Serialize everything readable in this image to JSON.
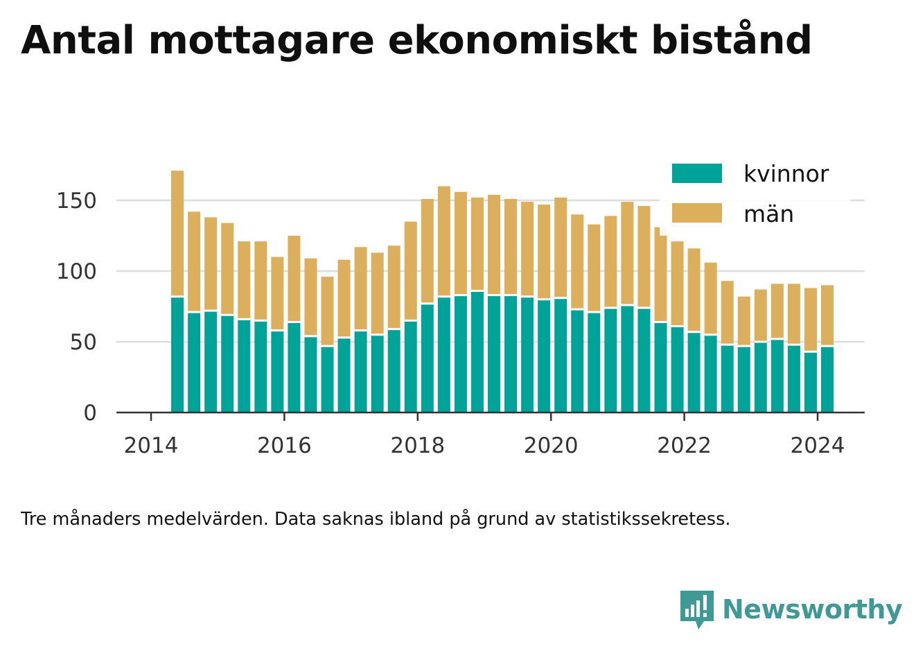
{
  "title": "Antal mottagare ekonomiskt bistånd",
  "note": "Tre månaders medelvärden. Data saknas ibland på grund av statistikssekretess.",
  "brand": "Newsworthy",
  "colors": {
    "kvinnor": "#00a398",
    "man": "#dcaf5d",
    "grid": "#dddddd",
    "axis": "#333333",
    "brand": "#3f9a96"
  },
  "chart_data": {
    "type": "bar",
    "stacked": true,
    "ylim": [
      0,
      175
    ],
    "yticks": [
      0,
      50,
      100,
      150
    ],
    "xticks": [
      "2014",
      "2016",
      "2018",
      "2020",
      "2022",
      "2024"
    ],
    "x_start": "2014-04",
    "x_step_months": 3,
    "legend_position": "top-right",
    "grid": true,
    "series": [
      {
        "name": "kvinnor",
        "values": [
          82,
          71,
          72,
          69,
          66,
          65,
          58,
          64,
          54,
          47,
          53,
          58,
          55,
          59,
          65,
          77,
          82,
          83,
          86,
          83,
          83,
          82,
          80,
          81,
          73,
          71,
          74,
          76,
          74,
          64,
          61,
          57,
          55,
          48,
          47,
          50,
          52,
          48,
          43,
          47
        ]
      },
      {
        "name": "män",
        "values": [
          89,
          71,
          66,
          65,
          55,
          56,
          52,
          61,
          55,
          49,
          55,
          59,
          58,
          59,
          70,
          74,
          78,
          73,
          66,
          71,
          68,
          67,
          67,
          71,
          67,
          62,
          65,
          73,
          72,
          67,
          60,
          59,
          51,
          45,
          35,
          37,
          39,
          43,
          45,
          43
        ]
      }
    ]
  }
}
